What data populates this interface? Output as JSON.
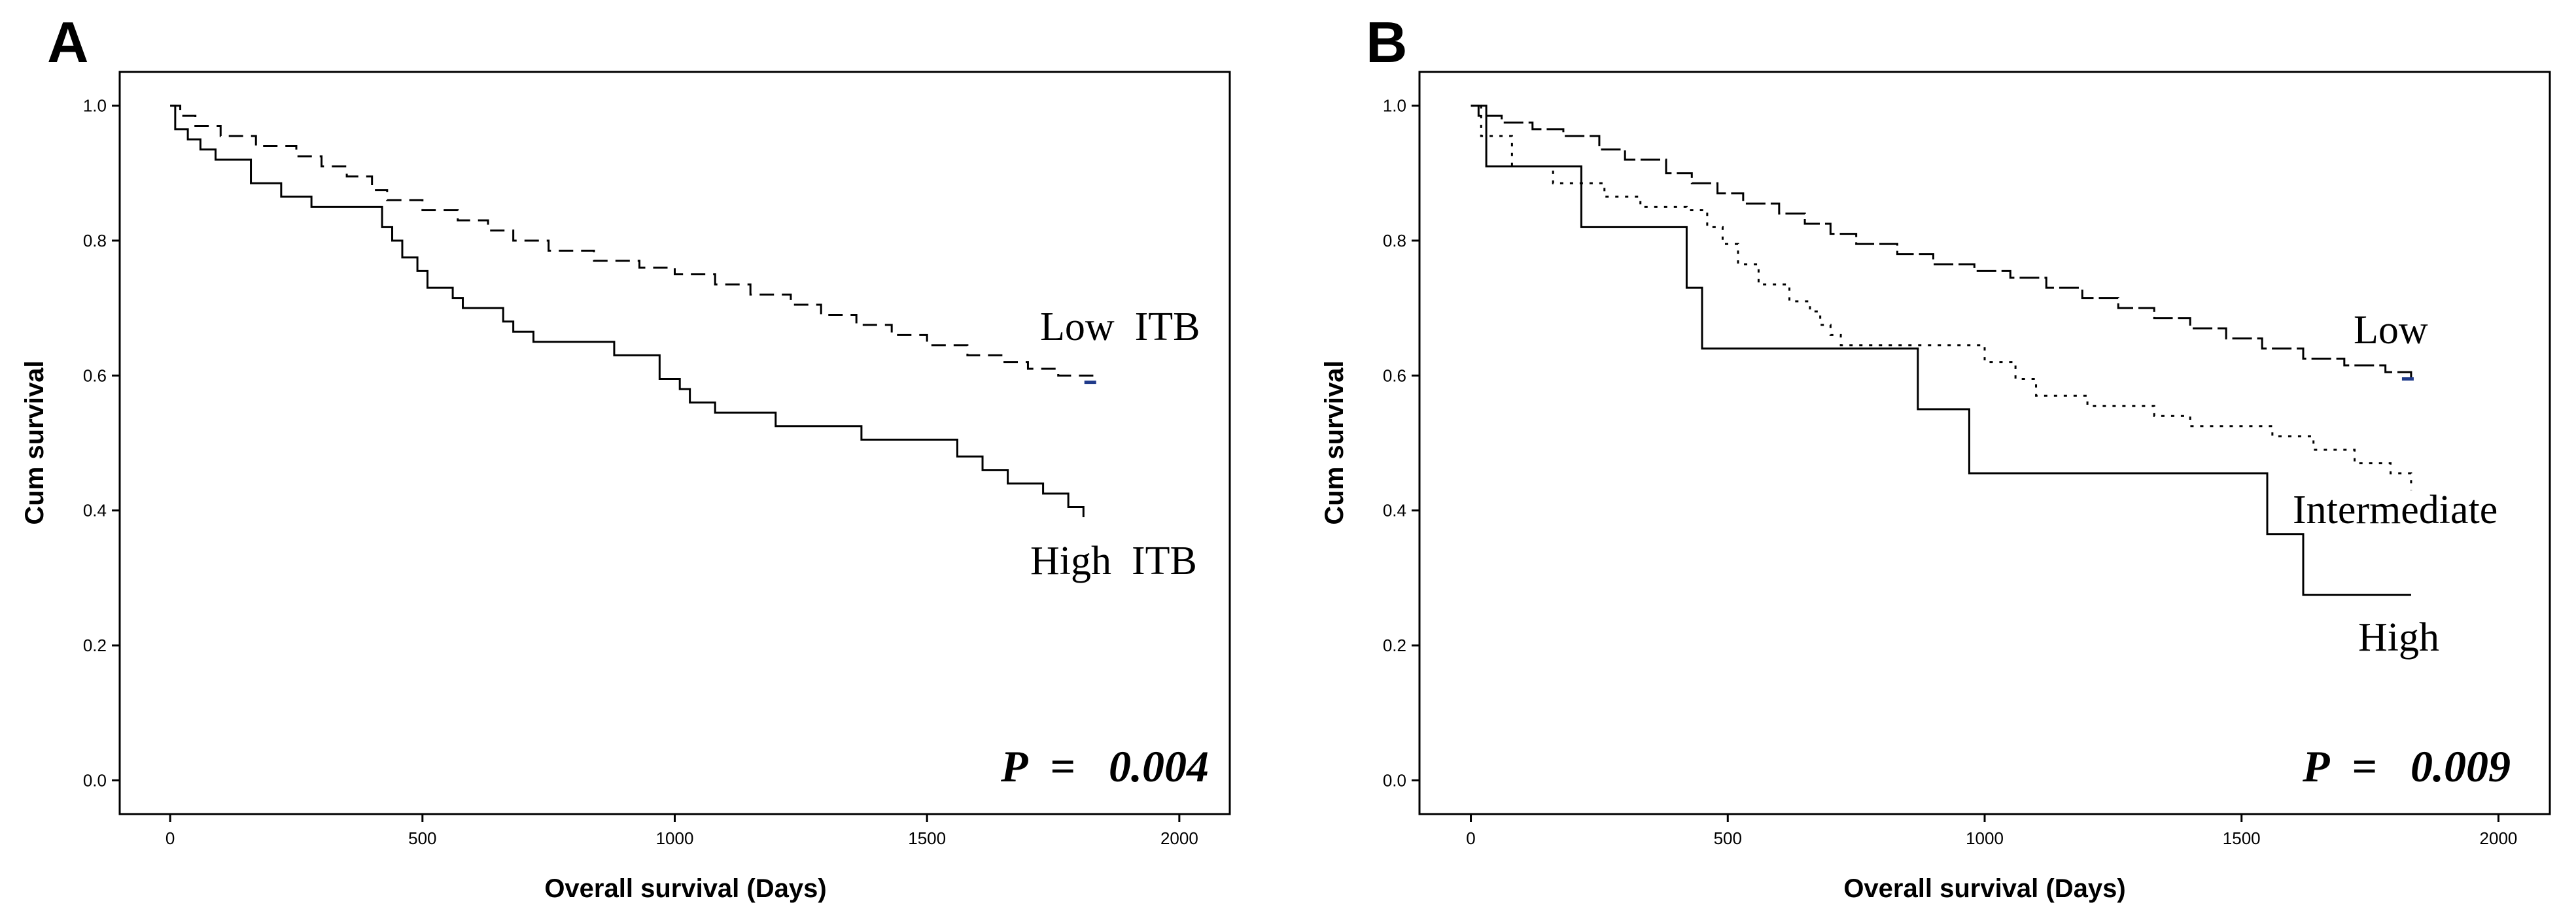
{
  "chart_data": [
    {
      "panel": "A",
      "type": "line",
      "title": "",
      "xlabel": "Overall survival (Days)",
      "ylabel": "Cum survival",
      "xlim": [
        -100,
        2100
      ],
      "ylim": [
        -0.05,
        1.05
      ],
      "xticks": [
        "0",
        "500",
        "1000",
        "1500",
        "2000"
      ],
      "yticks": [
        "0.0",
        "0.2",
        "0.4",
        "0.6",
        "0.8",
        "1.0"
      ],
      "annotation": {
        "p_label": "P",
        "equals": "=",
        "p_value": "0.004"
      },
      "series": [
        {
          "name": "Low  ITB",
          "style": "dashed",
          "censor_color": "#1f3a8a",
          "points": [
            [
              0,
              1.0
            ],
            [
              20,
              0.985
            ],
            [
              50,
              0.97
            ],
            [
              100,
              0.955
            ],
            [
              170,
              0.94
            ],
            [
              250,
              0.925
            ],
            [
              300,
              0.91
            ],
            [
              350,
              0.895
            ],
            [
              400,
              0.875
            ],
            [
              430,
              0.86
            ],
            [
              500,
              0.845
            ],
            [
              570,
              0.83
            ],
            [
              630,
              0.815
            ],
            [
              680,
              0.8
            ],
            [
              750,
              0.785
            ],
            [
              840,
              0.77
            ],
            [
              930,
              0.76
            ],
            [
              1000,
              0.75
            ],
            [
              1080,
              0.735
            ],
            [
              1150,
              0.72
            ],
            [
              1230,
              0.705
            ],
            [
              1290,
              0.69
            ],
            [
              1360,
              0.675
            ],
            [
              1430,
              0.66
            ],
            [
              1500,
              0.645
            ],
            [
              1580,
              0.63
            ],
            [
              1650,
              0.62
            ],
            [
              1700,
              0.61
            ],
            [
              1760,
              0.6
            ],
            [
              1830,
              0.59
            ]
          ]
        },
        {
          "name": "High  ITB",
          "style": "solid",
          "points": [
            [
              0,
              1.0
            ],
            [
              10,
              0.965
            ],
            [
              35,
              0.95
            ],
            [
              60,
              0.935
            ],
            [
              90,
              0.92
            ],
            [
              160,
              0.885
            ],
            [
              220,
              0.865
            ],
            [
              280,
              0.85
            ],
            [
              420,
              0.82
            ],
            [
              440,
              0.8
            ],
            [
              460,
              0.775
            ],
            [
              490,
              0.755
            ],
            [
              510,
              0.73
            ],
            [
              560,
              0.715
            ],
            [
              580,
              0.7
            ],
            [
              660,
              0.68
            ],
            [
              680,
              0.665
            ],
            [
              720,
              0.65
            ],
            [
              880,
              0.63
            ],
            [
              970,
              0.595
            ],
            [
              1010,
              0.58
            ],
            [
              1030,
              0.56
            ],
            [
              1080,
              0.545
            ],
            [
              1200,
              0.525
            ],
            [
              1370,
              0.505
            ],
            [
              1560,
              0.48
            ],
            [
              1610,
              0.46
            ],
            [
              1660,
              0.44
            ],
            [
              1730,
              0.425
            ],
            [
              1780,
              0.405
            ],
            [
              1810,
              0.39
            ]
          ]
        }
      ]
    },
    {
      "panel": "B",
      "type": "line",
      "title": "",
      "xlabel": "Overall survival (Days)",
      "ylabel": "Cum survival",
      "xlim": [
        -100,
        2100
      ],
      "ylim": [
        -0.05,
        1.05
      ],
      "xticks": [
        "0",
        "500",
        "1000",
        "1500",
        "2000"
      ],
      "yticks": [
        "0.0",
        "0.2",
        "0.4",
        "0.6",
        "0.8",
        "1.0"
      ],
      "annotation": {
        "p_label": "P",
        "equals": "=",
        "p_value": "0.009"
      },
      "series": [
        {
          "name": "Low",
          "style": "longdash",
          "censor_color": "#1f3a8a",
          "points": [
            [
              0,
              1.0
            ],
            [
              15,
              0.985
            ],
            [
              60,
              0.975
            ],
            [
              120,
              0.965
            ],
            [
              180,
              0.955
            ],
            [
              250,
              0.935
            ],
            [
              300,
              0.92
            ],
            [
              380,
              0.9
            ],
            [
              430,
              0.885
            ],
            [
              480,
              0.87
            ],
            [
              530,
              0.855
            ],
            [
              600,
              0.84
            ],
            [
              650,
              0.825
            ],
            [
              700,
              0.81
            ],
            [
              750,
              0.795
            ],
            [
              830,
              0.78
            ],
            [
              900,
              0.765
            ],
            [
              980,
              0.755
            ],
            [
              1050,
              0.745
            ],
            [
              1120,
              0.73
            ],
            [
              1190,
              0.715
            ],
            [
              1260,
              0.7
            ],
            [
              1330,
              0.685
            ],
            [
              1400,
              0.67
            ],
            [
              1470,
              0.655
            ],
            [
              1540,
              0.64
            ],
            [
              1620,
              0.625
            ],
            [
              1700,
              0.615
            ],
            [
              1780,
              0.605
            ],
            [
              1830,
              0.595
            ]
          ]
        },
        {
          "name": "Intermediate",
          "style": "dotted",
          "points": [
            [
              0,
              1.0
            ],
            [
              20,
              0.955
            ],
            [
              80,
              0.91
            ],
            [
              160,
              0.885
            ],
            [
              260,
              0.865
            ],
            [
              330,
              0.85
            ],
            [
              420,
              0.845
            ],
            [
              460,
              0.82
            ],
            [
              490,
              0.795
            ],
            [
              520,
              0.765
            ],
            [
              560,
              0.735
            ],
            [
              620,
              0.71
            ],
            [
              660,
              0.695
            ],
            [
              680,
              0.675
            ],
            [
              700,
              0.66
            ],
            [
              720,
              0.645
            ],
            [
              940,
              0.645
            ],
            [
              1000,
              0.62
            ],
            [
              1060,
              0.595
            ],
            [
              1100,
              0.57
            ],
            [
              1200,
              0.555
            ],
            [
              1330,
              0.54
            ],
            [
              1400,
              0.525
            ],
            [
              1560,
              0.51
            ],
            [
              1640,
              0.49
            ],
            [
              1720,
              0.47
            ],
            [
              1790,
              0.455
            ],
            [
              1830,
              0.43
            ]
          ]
        },
        {
          "name": "High",
          "style": "solid",
          "points": [
            [
              0,
              1.0
            ],
            [
              30,
              0.91
            ],
            [
              215,
              0.82
            ],
            [
              420,
              0.73
            ],
            [
              450,
              0.64
            ],
            [
              870,
              0.55
            ],
            [
              970,
              0.455
            ],
            [
              1550,
              0.365
            ],
            [
              1620,
              0.275
            ],
            [
              1830,
              0.275
            ]
          ]
        }
      ]
    }
  ]
}
